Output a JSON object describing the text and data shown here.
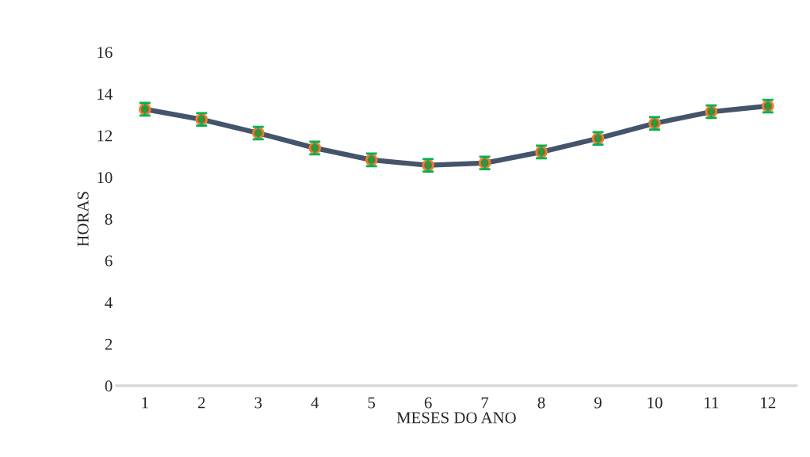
{
  "chart_data": {
    "type": "line",
    "xlabel": "MESES DO ANO",
    "ylabel": "HORAS",
    "categories": [
      "1",
      "2",
      "3",
      "4",
      "5",
      "6",
      "7",
      "8",
      "9",
      "10",
      "11",
      "12"
    ],
    "series": [
      {
        "color": "#44546a",
        "values": [
          13.26,
          12.77,
          12.12,
          11.4,
          10.83,
          10.57,
          10.68,
          11.21,
          11.86,
          12.58,
          13.14,
          13.41
        ],
        "errors": [
          0.3,
          0.3,
          0.3,
          0.3,
          0.3,
          0.3,
          0.3,
          0.3,
          0.3,
          0.3,
          0.3,
          0.3
        ]
      }
    ],
    "ylim": [
      0,
      16
    ],
    "yticks": [
      0,
      2,
      4,
      6,
      8,
      10,
      12,
      14,
      16
    ],
    "marker": "circle",
    "line_style": "solid",
    "grid": false,
    "legend": false
  }
}
